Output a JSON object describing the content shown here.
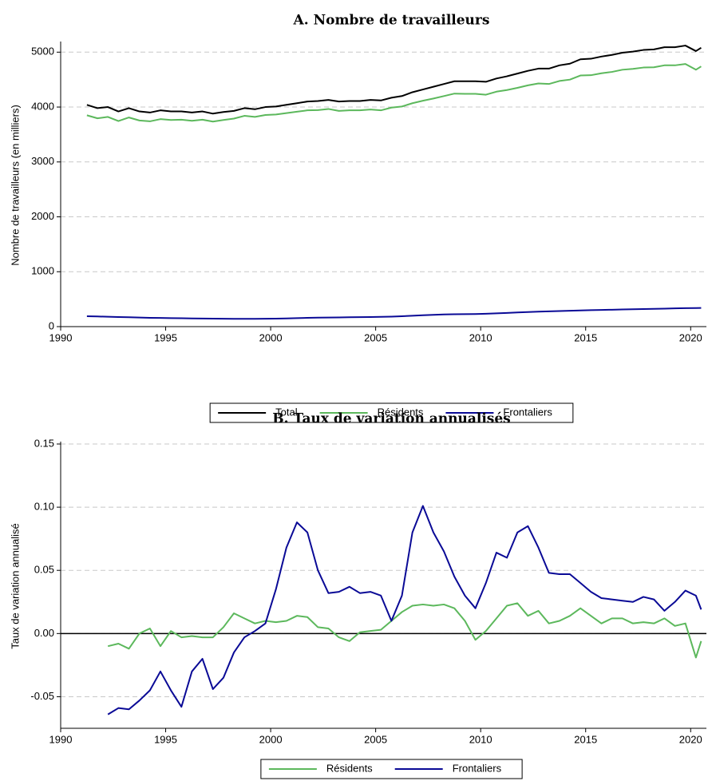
{
  "chart_data": [
    {
      "type": "line",
      "title": "A. Nombre de travailleurs",
      "y_label": "Nombre de travailleurs (en milliers)",
      "x": [
        1991.25,
        1991.75,
        1992.25,
        1992.75,
        1993.25,
        1993.75,
        1994.25,
        1994.75,
        1995.25,
        1995.75,
        1996.25,
        1996.75,
        1997.25,
        1997.75,
        1998.25,
        1998.75,
        1999.25,
        1999.75,
        2000.25,
        2000.75,
        2001.25,
        2001.75,
        2002.25,
        2002.75,
        2003.25,
        2003.75,
        2004.25,
        2004.75,
        2005.25,
        2005.75,
        2006.25,
        2006.75,
        2007.25,
        2007.75,
        2008.25,
        2008.75,
        2009.25,
        2009.75,
        2010.25,
        2010.75,
        2011.25,
        2011.75,
        2012.25,
        2012.75,
        2013.25,
        2013.75,
        2014.25,
        2014.75,
        2015.25,
        2015.75,
        2016.25,
        2016.75,
        2017.25,
        2017.75,
        2018.25,
        2018.75,
        2019.25,
        2019.75,
        2020.25,
        2020.5
      ],
      "series": [
        {
          "name": "Total",
          "color": "#000000",
          "values": [
            4040,
            3980,
            4000,
            3920,
            3980,
            3920,
            3900,
            3940,
            3920,
            3920,
            3900,
            3920,
            3880,
            3910,
            3930,
            3980,
            3960,
            4000,
            4010,
            4040,
            4070,
            4100,
            4110,
            4130,
            4100,
            4110,
            4110,
            4130,
            4120,
            4170,
            4200,
            4270,
            4320,
            4370,
            4420,
            4470,
            4470,
            4470,
            4460,
            4520,
            4560,
            4610,
            4660,
            4700,
            4700,
            4760,
            4790,
            4870,
            4880,
            4920,
            4950,
            4990,
            5010,
            5040,
            5050,
            5090,
            5090,
            5120,
            5020,
            5080
          ]
        },
        {
          "name": "Résidents",
          "color": "#5cb85c",
          "values": [
            3850,
            3795,
            3820,
            3745,
            3810,
            3755,
            3740,
            3780,
            3765,
            3770,
            3750,
            3770,
            3735,
            3765,
            3790,
            3840,
            3820,
            3855,
            3865,
            3890,
            3915,
            3940,
            3945,
            3965,
            3930,
            3940,
            3940,
            3955,
            3940,
            3990,
            4010,
            4070,
            4115,
            4155,
            4200,
            4245,
            4240,
            4240,
            4225,
            4280,
            4310,
            4350,
            4395,
            4430,
            4420,
            4475,
            4500,
            4575,
            4580,
            4615,
            4640,
            4680,
            4695,
            4720,
            4725,
            4760,
            4760,
            4785,
            4680,
            4740
          ]
        },
        {
          "name": "Frontaliers",
          "color": "#0a0a96",
          "values": [
            190,
            185,
            180,
            175,
            170,
            165,
            160,
            158,
            155,
            152,
            150,
            148,
            146,
            144,
            142,
            142,
            142,
            143,
            145,
            150,
            155,
            160,
            163,
            166,
            168,
            170,
            172,
            175,
            178,
            182,
            190,
            198,
            207,
            215,
            222,
            226,
            228,
            230,
            235,
            242,
            250,
            258,
            265,
            272,
            278,
            284,
            290,
            295,
            300,
            304,
            308,
            312,
            316,
            320,
            324,
            328,
            332,
            336,
            338,
            340
          ]
        }
      ],
      "xlim": [
        1990,
        2020.75
      ],
      "xticks": [
        1990,
        1995,
        2000,
        2005,
        2010,
        2015,
        2020
      ],
      "ylim": [
        0,
        5150
      ],
      "yticks": [
        0,
        1000,
        2000,
        3000,
        4000,
        5000
      ],
      "grid": true,
      "zero_line": false,
      "legend": "bottom"
    },
    {
      "type": "line",
      "title": "B. Taux de variation annualisés",
      "y_label": "Taux de variation annualisé",
      "x": [
        1992.25,
        1992.75,
        1993.25,
        1993.75,
        1994.25,
        1994.75,
        1995.25,
        1995.75,
        1996.25,
        1996.75,
        1997.25,
        1997.75,
        1998.25,
        1998.75,
        1999.25,
        1999.75,
        2000.25,
        2000.75,
        2001.25,
        2001.75,
        2002.25,
        2002.75,
        2003.25,
        2003.75,
        2004.25,
        2004.75,
        2005.25,
        2005.75,
        2006.25,
        2006.75,
        2007.25,
        2007.75,
        2008.25,
        2008.75,
        2009.25,
        2009.75,
        2010.25,
        2010.75,
        2011.25,
        2011.75,
        2012.25,
        2012.75,
        2013.25,
        2013.75,
        2014.25,
        2014.75,
        2015.25,
        2015.75,
        2016.25,
        2016.75,
        2017.25,
        2017.75,
        2018.25,
        2018.75,
        2019.25,
        2019.75,
        2020.25,
        2020.5
      ],
      "series": [
        {
          "name": "Résidents",
          "color": "#5cb85c",
          "values": [
            -0.01,
            -0.008,
            -0.012,
            0.0,
            0.004,
            -0.01,
            0.002,
            -0.003,
            -0.002,
            -0.003,
            -0.003,
            0.005,
            0.016,
            0.012,
            0.008,
            0.01,
            0.009,
            0.01,
            0.014,
            0.013,
            0.005,
            0.004,
            -0.003,
            -0.006,
            0.001,
            0.002,
            0.003,
            0.01,
            0.017,
            0.022,
            0.023,
            0.022,
            0.023,
            0.02,
            0.01,
            -0.005,
            0.002,
            0.012,
            0.022,
            0.024,
            0.014,
            0.018,
            0.008,
            0.01,
            0.014,
            0.02,
            0.014,
            0.008,
            0.012,
            0.012,
            0.008,
            0.009,
            0.008,
            0.012,
            0.006,
            0.008,
            -0.019,
            -0.006
          ]
        },
        {
          "name": "Frontaliers",
          "color": "#0a0a96",
          "values": [
            -0.064,
            -0.059,
            -0.06,
            -0.053,
            -0.045,
            -0.03,
            -0.045,
            -0.058,
            -0.03,
            -0.02,
            -0.044,
            -0.035,
            -0.015,
            -0.003,
            0.002,
            0.008,
            0.035,
            0.068,
            0.088,
            0.08,
            0.05,
            0.032,
            0.033,
            0.037,
            0.032,
            0.033,
            0.03,
            0.01,
            0.03,
            0.08,
            0.101,
            0.08,
            0.065,
            0.045,
            0.03,
            0.02,
            0.04,
            0.064,
            0.06,
            0.08,
            0.085,
            0.068,
            0.048,
            0.047,
            0.047,
            0.04,
            0.033,
            0.028,
            0.027,
            0.026,
            0.025,
            0.029,
            0.027,
            0.018,
            0.025,
            0.034,
            0.03,
            0.019
          ]
        }
      ],
      "xlim": [
        1990,
        2020.75
      ],
      "xticks": [
        1990,
        1995,
        2000,
        2005,
        2010,
        2015,
        2020
      ],
      "ylim": [
        -0.075,
        0.15
      ],
      "yticks": [
        0.15,
        {
          "value": 0.1,
          "label": "0.10"
        },
        0.05,
        {
          "value": 0.0,
          "label": "0.00"
        },
        -0.05
      ],
      "grid": true,
      "zero_line": true,
      "legend": "bottom"
    }
  ]
}
